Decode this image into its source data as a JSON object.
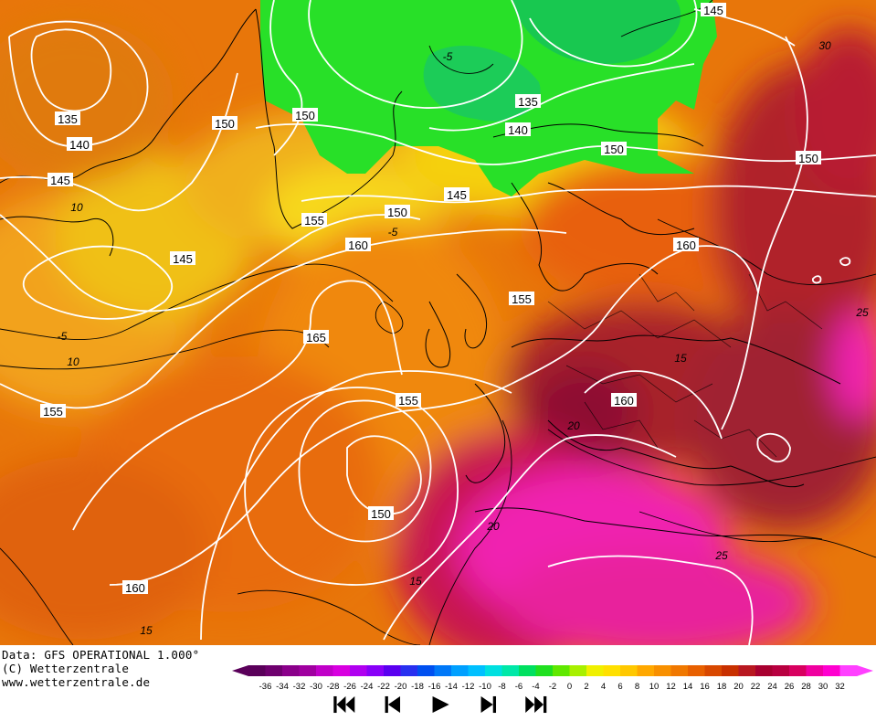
{
  "credits": {
    "data_line": "Data: GFS OPERATIONAL 1.000°",
    "copyright": "(C) Wetterzentrale",
    "website": "www.wetterzentrale.de"
  },
  "legend": {
    "ticks": [
      "-36",
      "-34",
      "-32",
      "-30",
      "-28",
      "-26",
      "-24",
      "-22",
      "-20",
      "-18",
      "-16",
      "-14",
      "-12",
      "-10",
      "-8",
      "-6",
      "-4",
      "-2",
      "0",
      "2",
      "4",
      "6",
      "8",
      "10",
      "12",
      "14",
      "16",
      "18",
      "20",
      "22",
      "24",
      "26",
      "28",
      "30",
      "32"
    ],
    "colors": [
      "#5a005a",
      "#6e006e",
      "#8a008a",
      "#a000a0",
      "#c000c8",
      "#d800e0",
      "#b000f0",
      "#8800f8",
      "#5a00f0",
      "#2830f0",
      "#0050f0",
      "#0078f8",
      "#00a0ff",
      "#00c0ff",
      "#00e0e0",
      "#00e8a8",
      "#00e060",
      "#20e020",
      "#60e800",
      "#a8f000",
      "#f0f000",
      "#ffe000",
      "#ffc800",
      "#ffa800",
      "#f89000",
      "#f07800",
      "#e86000",
      "#d84800",
      "#c83000",
      "#b81820",
      "#a80030",
      "#b80040",
      "#d80060",
      "#f000a0",
      "#ff00d0",
      "#ff40ff"
    ]
  },
  "isohypse_labels": [
    "135",
    "140",
    "145",
    "150",
    "150",
    "150",
    "145",
    "145",
    "135",
    "140",
    "150",
    "145",
    "150",
    "155",
    "160",
    "155",
    "160",
    "165",
    "155",
    "150",
    "155",
    "160",
    "160",
    "145"
  ],
  "isotherm_labels": [
    "-5",
    "10",
    "-5",
    "10",
    "15",
    "20",
    "25",
    "20",
    "15",
    "15",
    "30",
    "25",
    "-5"
  ],
  "navigation": {
    "first": "first-frame",
    "prev": "previous-frame",
    "play": "play",
    "next": "next-frame",
    "last": "last-frame"
  }
}
